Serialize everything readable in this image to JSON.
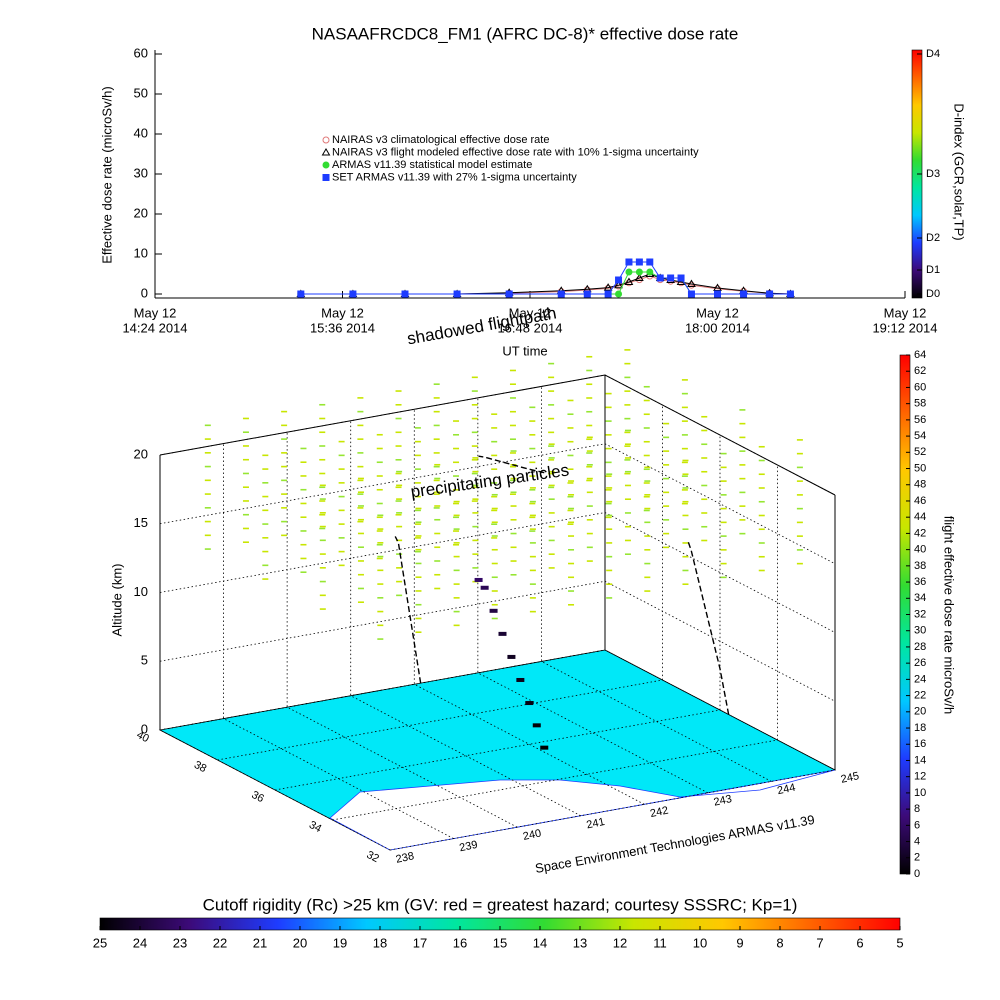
{
  "chart_data": [
    {
      "type": "scatter",
      "title": "NASAAFRCDC8_FM1 (AFRC DC-8)* effective dose rate",
      "x_label": "UT time",
      "y_label": "Effective dose rate (microSv/h)",
      "y2_label": "D-index (GCR,solar,TP)",
      "xlim": [
        "2014-05-12T14:24",
        "2014-05-12T19:12"
      ],
      "xticks": [
        {
          "value": "2014-05-12T14:24",
          "label": [
            "May 12",
            "14:24 2014"
          ]
        },
        {
          "value": "2014-05-12T15:36",
          "label": [
            "May 12",
            "15:36 2014"
          ]
        },
        {
          "value": "2014-05-12T16:48",
          "label": [
            "May 12",
            "16:48 2014"
          ]
        },
        {
          "value": "2014-05-12T18:00",
          "label": [
            "May 12",
            "18:00 2014"
          ]
        },
        {
          "value": "2014-05-12T19:12",
          "label": [
            "May 12",
            "19:12 2014"
          ]
        }
      ],
      "ylim": [
        -1,
        61
      ],
      "yticks": [
        0,
        10,
        20,
        30,
        40,
        50,
        60
      ],
      "y2lim": [
        -1,
        61
      ],
      "y2ticks": [
        {
          "value": 0,
          "label": "D0"
        },
        {
          "value": 6,
          "label": "D1"
        },
        {
          "value": 14,
          "label": "D2"
        },
        {
          "value": 30,
          "label": "D3"
        },
        {
          "value": 60,
          "label": "D4"
        }
      ],
      "colormap": [
        "#000000",
        "#3c0a78",
        "#1e3cff",
        "#00c8ff",
        "#00e6a0",
        "#32dc32",
        "#c8e600",
        "#ffc800",
        "#ff6400",
        "#ff0000"
      ],
      "x": [
        "2014-05-12T15:20",
        "2014-05-12T15:40",
        "2014-05-12T16:00",
        "2014-05-12T16:20",
        "2014-05-12T16:40",
        "2014-05-12T17:00",
        "2014-05-12T17:10",
        "2014-05-12T17:18",
        "2014-05-12T17:22",
        "2014-05-12T17:26",
        "2014-05-12T17:30",
        "2014-05-12T17:34",
        "2014-05-12T17:38",
        "2014-05-12T17:42",
        "2014-05-12T17:46",
        "2014-05-12T17:50",
        "2014-05-12T18:00",
        "2014-05-12T18:10",
        "2014-05-12T18:20",
        "2014-05-12T18:28"
      ],
      "series": [
        {
          "name": "NAIRAS v3 climatological effective dose rate",
          "color": "#e07878",
          "marker": "circle",
          "filled": false,
          "values": [
            0,
            0,
            0,
            0,
            0.2,
            0.6,
            1,
            1.4,
            2,
            2.8,
            3.6,
            4.5,
            3.6,
            3.2,
            2.8,
            2.2,
            1.3,
            0.7,
            0.2,
            0
          ]
        },
        {
          "name": "NAIRAS v3 flight modeled effective dose rate with 10% 1-sigma uncertainty",
          "color": "#000000",
          "marker": "triangle",
          "filled": false,
          "values": [
            0,
            0,
            0,
            0,
            0.3,
            0.8,
            1.2,
            1.6,
            2.2,
            3,
            4,
            5,
            4,
            3.5,
            3,
            2.5,
            1.5,
            0.8,
            0.2,
            0
          ]
        },
        {
          "name": "ARMAS v11.39 statistical model estimate",
          "color": "#32dc32",
          "marker": "circle",
          "filled": true,
          "values": [
            0,
            0,
            0,
            0,
            0,
            0,
            0,
            0,
            0,
            5.5,
            5.5,
            5.5,
            4,
            4,
            4,
            0,
            0,
            0,
            0,
            0
          ]
        },
        {
          "name": "SET ARMAS v11.39 with 27% 1-sigma uncertainty",
          "color": "#1e3cff",
          "marker": "square",
          "filled": true,
          "values": [
            0,
            0,
            0,
            0,
            0,
            0,
            0,
            0,
            3.5,
            8,
            8,
            8,
            4,
            4,
            4,
            0,
            0,
            0,
            0,
            0
          ]
        }
      ]
    },
    {
      "type": "scatter3d",
      "z_label": "Altitude (km)",
      "credit": "Space Environment Technologies ARMAS v11.39",
      "annotations": [
        "shadowed flightpath",
        "precipitating particles"
      ],
      "xlim": [
        238,
        245
      ],
      "xticks": [
        238,
        239,
        240,
        241,
        242,
        243,
        244,
        245
      ],
      "ylim": [
        32,
        40
      ],
      "yticks": [
        32,
        34,
        36,
        38,
        40
      ],
      "zlim": [
        0,
        20
      ],
      "zticks": [
        0,
        5,
        10,
        15,
        20
      ],
      "colormap": [
        "#000000",
        "#3c0a78",
        "#1e3cff",
        "#00c8ff",
        "#00e6a0",
        "#32dc32",
        "#c8e600",
        "#ffc800",
        "#ff6400",
        "#ff0000"
      ],
      "track": {
        "x": [
          242.1,
          242.05,
          242.0,
          241.95,
          241.9,
          241.85,
          241.8,
          241.75,
          241.7
        ],
        "y": [
          35.7,
          35.85,
          36.0,
          36.2,
          36.4,
          36.6,
          36.8,
          37.0,
          37.1
        ],
        "z": [
          0,
          1.5,
          3,
          4.5,
          6,
          7.5,
          9,
          10.5,
          11
        ],
        "values": [
          0,
          0.5,
          1,
          1.5,
          2,
          3,
          4,
          5,
          6
        ]
      },
      "colorbar": {
        "label": "flight effective dose rate microSv/h",
        "lim": [
          0,
          64
        ],
        "ticks": [
          0,
          2,
          4,
          6,
          8,
          10,
          12,
          14,
          16,
          18,
          20,
          22,
          24,
          26,
          28,
          30,
          32,
          34,
          36,
          38,
          40,
          42,
          44,
          46,
          48,
          50,
          52,
          54,
          56,
          58,
          60,
          62,
          64
        ]
      },
      "colorbar2": {
        "title": "Cutoff rigidity (Rc) >25 km (GV: red = greatest hazard; courtesy SSSRC; Kp=1)",
        "lim": [
          25,
          5
        ],
        "ticks": [
          25,
          24,
          23,
          22,
          21,
          20,
          19,
          18,
          17,
          16,
          15,
          14,
          13,
          12,
          11,
          10,
          9,
          8,
          7,
          6,
          5
        ]
      }
    }
  ]
}
